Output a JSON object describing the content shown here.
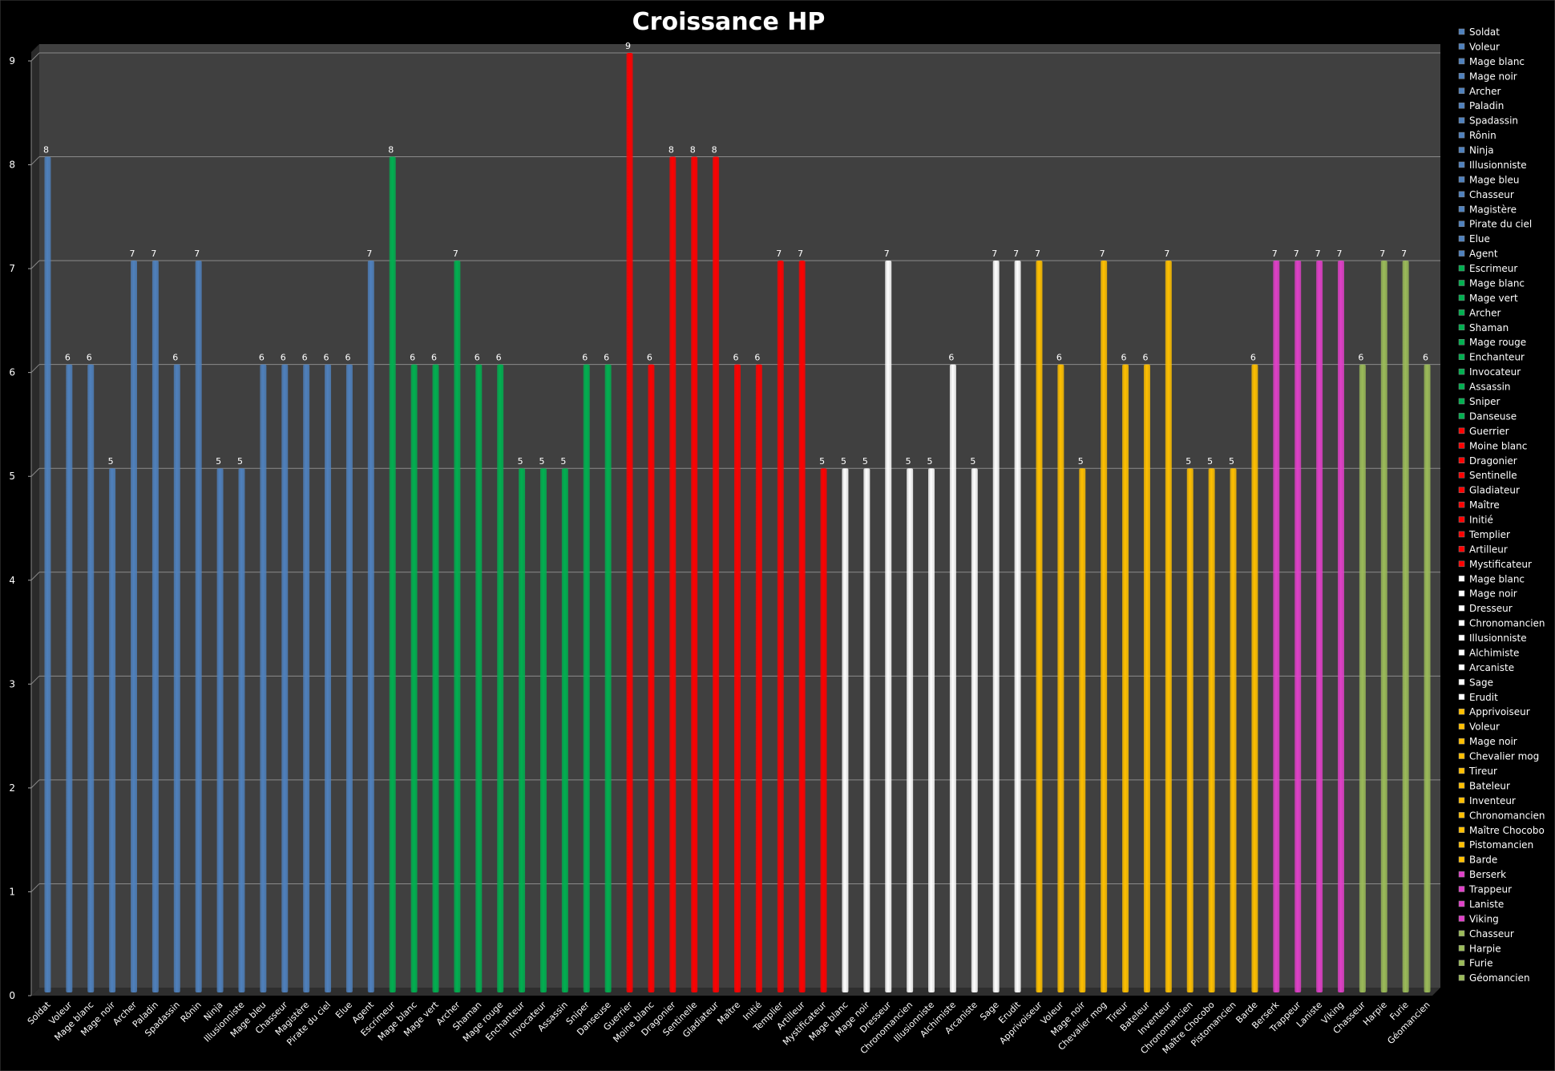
{
  "chart_data": {
    "type": "bar",
    "title": "Croissance HP",
    "xlabel": "",
    "ylabel": "",
    "ylim": [
      0,
      9
    ],
    "yticks": [
      0,
      1,
      2,
      3,
      4,
      5,
      6,
      7,
      8,
      9
    ],
    "grid": true,
    "legend_position": "right",
    "categories": [
      "Soldat",
      "Voleur",
      "Mage blanc",
      "Mage noir",
      "Archer",
      "Paladin",
      "Spadassin",
      "Rônin",
      "Ninja",
      "Illusionniste",
      "Mage bleu",
      "Chasseur",
      "Magistère",
      "Pirate du ciel",
      "Elue",
      "Agent",
      "Escrimeur",
      "Mage blanc",
      "Mage vert",
      "Archer",
      "Shaman",
      "Mage rouge",
      "Enchanteur",
      "Invocateur",
      "Assassin",
      "Sniper",
      "Danseuse",
      "Guerrier",
      "Moine blanc",
      "Dragonier",
      "Sentinelle",
      "Gladiateur",
      "Maître",
      "Initié",
      "Templier",
      "Artilleur",
      "Mystificateur",
      "Mage blanc",
      "Mage noir",
      "Dresseur",
      "Chronomancien",
      "Illusionniste",
      "Alchimiste",
      "Arcaniste",
      "Sage",
      "Erudit",
      "Apprivoiseur",
      "Voleur",
      "Mage noir",
      "Chevalier mog",
      "Tireur",
      "Bateleur",
      "Inventeur",
      "Chronomancien",
      "Maître Chocobo",
      "Pistomancien",
      "Barde",
      "Berserk",
      "Trappeur",
      "Laniste",
      "Viking",
      "Chasseur",
      "Harpie",
      "Furie",
      "Géomancien"
    ],
    "values": [
      8,
      6,
      6,
      5,
      7,
      7,
      6,
      7,
      5,
      5,
      6,
      6,
      6,
      6,
      6,
      7,
      8,
      6,
      6,
      7,
      6,
      6,
      5,
      5,
      5,
      6,
      6,
      9,
      6,
      8,
      8,
      8,
      6,
      6,
      7,
      7,
      5,
      5,
      5,
      7,
      5,
      5,
      6,
      5,
      7,
      7,
      7,
      6,
      5,
      7,
      6,
      6,
      7,
      5,
      5,
      5,
      6,
      7,
      7,
      7,
      7,
      6,
      7,
      7,
      6
    ],
    "group_colors": {
      "blue": "#4F81BD",
      "green": "#00B050",
      "red": "#FF0000",
      "white": "#FFFFFF",
      "yellow": "#FFC000",
      "pink": "#E040C8",
      "olive": "#9BBB59"
    },
    "bar_groups": [
      "blue",
      "blue",
      "blue",
      "blue",
      "blue",
      "blue",
      "blue",
      "blue",
      "blue",
      "blue",
      "blue",
      "blue",
      "blue",
      "blue",
      "blue",
      "blue",
      "green",
      "green",
      "green",
      "green",
      "green",
      "green",
      "green",
      "green",
      "green",
      "green",
      "green",
      "red",
      "red",
      "red",
      "red",
      "red",
      "red",
      "red",
      "red",
      "red",
      "red",
      "white",
      "white",
      "white",
      "white",
      "white",
      "white",
      "white",
      "white",
      "white",
      "yellow",
      "yellow",
      "yellow",
      "yellow",
      "yellow",
      "yellow",
      "yellow",
      "yellow",
      "yellow",
      "yellow",
      "yellow",
      "pink",
      "pink",
      "pink",
      "pink",
      "olive",
      "olive",
      "olive",
      "olive"
    ],
    "plot_background": "#404040",
    "page_background": "#000000"
  }
}
